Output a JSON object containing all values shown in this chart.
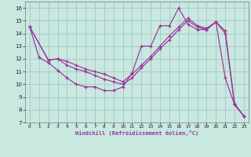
{
  "xlabel": "Windchill (Refroidissement éolien,°C)",
  "bg_color": "#c8e8e0",
  "grid_color": "#a8ccc8",
  "line_color": "#993399",
  "xlim": [
    -0.5,
    23.5
  ],
  "ylim": [
    7,
    16.5
  ],
  "xticks": [
    0,
    1,
    2,
    3,
    4,
    5,
    6,
    7,
    8,
    9,
    10,
    11,
    12,
    13,
    14,
    15,
    16,
    17,
    18,
    19,
    20,
    21,
    22,
    23
  ],
  "yticks": [
    7,
    8,
    9,
    10,
    11,
    12,
    13,
    14,
    15,
    16
  ],
  "line1_x": [
    0,
    1,
    2,
    3,
    4,
    5,
    6,
    7,
    8,
    9,
    10,
    11,
    12,
    13,
    14,
    15,
    16,
    17,
    18,
    19,
    20,
    21,
    22,
    23
  ],
  "line1_y": [
    14.5,
    12.1,
    11.7,
    11.1,
    10.5,
    10.0,
    9.8,
    9.8,
    9.5,
    9.5,
    9.8,
    10.9,
    13.0,
    13.0,
    14.6,
    14.6,
    16.0,
    14.7,
    14.3,
    14.3,
    14.9,
    10.5,
    8.4,
    7.5
  ],
  "line2_x": [
    0,
    2,
    3,
    4,
    5,
    6,
    7,
    8,
    9,
    10,
    11,
    12,
    13,
    14,
    15,
    16,
    17,
    18,
    19,
    20,
    21,
    22,
    23
  ],
  "line2_y": [
    14.5,
    11.9,
    12.0,
    11.5,
    11.2,
    11.0,
    10.7,
    10.4,
    10.2,
    10.0,
    10.5,
    11.3,
    12.0,
    12.8,
    13.5,
    14.3,
    15.0,
    14.5,
    14.3,
    14.9,
    14.0,
    8.4,
    7.5
  ],
  "line3_x": [
    0,
    2,
    3,
    4,
    5,
    6,
    7,
    8,
    9,
    10,
    11,
    12,
    13,
    14,
    15,
    16,
    17,
    18,
    19,
    20,
    21,
    22,
    23
  ],
  "line3_y": [
    14.5,
    11.9,
    12.0,
    11.8,
    11.5,
    11.2,
    11.0,
    10.8,
    10.5,
    10.2,
    10.8,
    11.5,
    12.2,
    13.0,
    13.8,
    14.5,
    15.2,
    14.6,
    14.4,
    14.9,
    14.2,
    8.5,
    7.5
  ]
}
